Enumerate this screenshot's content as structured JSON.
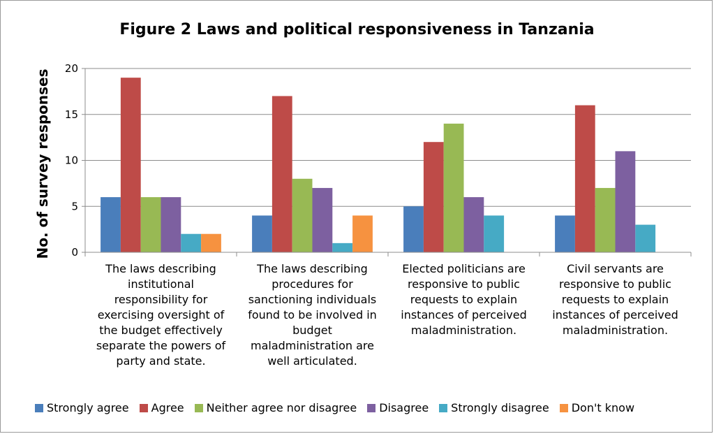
{
  "chart_data": {
    "type": "bar",
    "title": "Figure 2 Laws and political responsiveness in Tanzania",
    "ylabel": "No. of survey responses",
    "xlabel": "",
    "ylim": [
      0,
      20
    ],
    "yticks": [
      "0",
      "5",
      "10",
      "15",
      "20"
    ],
    "grid": true,
    "legend_position": "bottom",
    "categories": [
      "The laws describing institutional responsibility for exercising oversight of the budget effectively separate the powers of party and state.",
      "The laws describing procedures for sanctioning individuals found to be involved in budget maladministration are well articulated.",
      "Elected politicians are responsive to public requests to explain instances of perceived maladministration.",
      "Civil servants are responsive to public requests to explain instances of perceived maladministration."
    ],
    "category_lines": [
      [
        "The laws describing",
        "institutional",
        "responsibility for",
        "exercising oversight of",
        "the budget effectively",
        "separate the powers of",
        "party and state."
      ],
      [
        "The laws describing",
        "procedures for",
        "sanctioning individuals",
        "found to be involved in",
        "budget",
        "maladministration are",
        "well articulated."
      ],
      [
        "Elected politicians are",
        "responsive to public",
        "requests to explain",
        "instances of perceived",
        "maladministration."
      ],
      [
        "Civil servants are",
        "responsive to public",
        "requests to explain",
        "instances of perceived",
        "maladministration."
      ]
    ],
    "series": [
      {
        "name": "Strongly agree",
        "color": "#4a7ebb",
        "values": [
          6,
          4,
          5,
          4
        ]
      },
      {
        "name": "Agree",
        "color": "#be4b48",
        "values": [
          19,
          17,
          12,
          16
        ]
      },
      {
        "name": "Neither agree nor disagree",
        "color": "#98b954",
        "values": [
          6,
          8,
          14,
          7
        ]
      },
      {
        "name": "Disagree",
        "color": "#7d60a0",
        "values": [
          6,
          7,
          6,
          11
        ]
      },
      {
        "name": "Strongly disagree",
        "color": "#46aac5",
        "values": [
          2,
          1,
          4,
          3
        ]
      },
      {
        "name": "Don't know",
        "color": "#f69240",
        "values": [
          2,
          4,
          0,
          0
        ]
      }
    ]
  }
}
